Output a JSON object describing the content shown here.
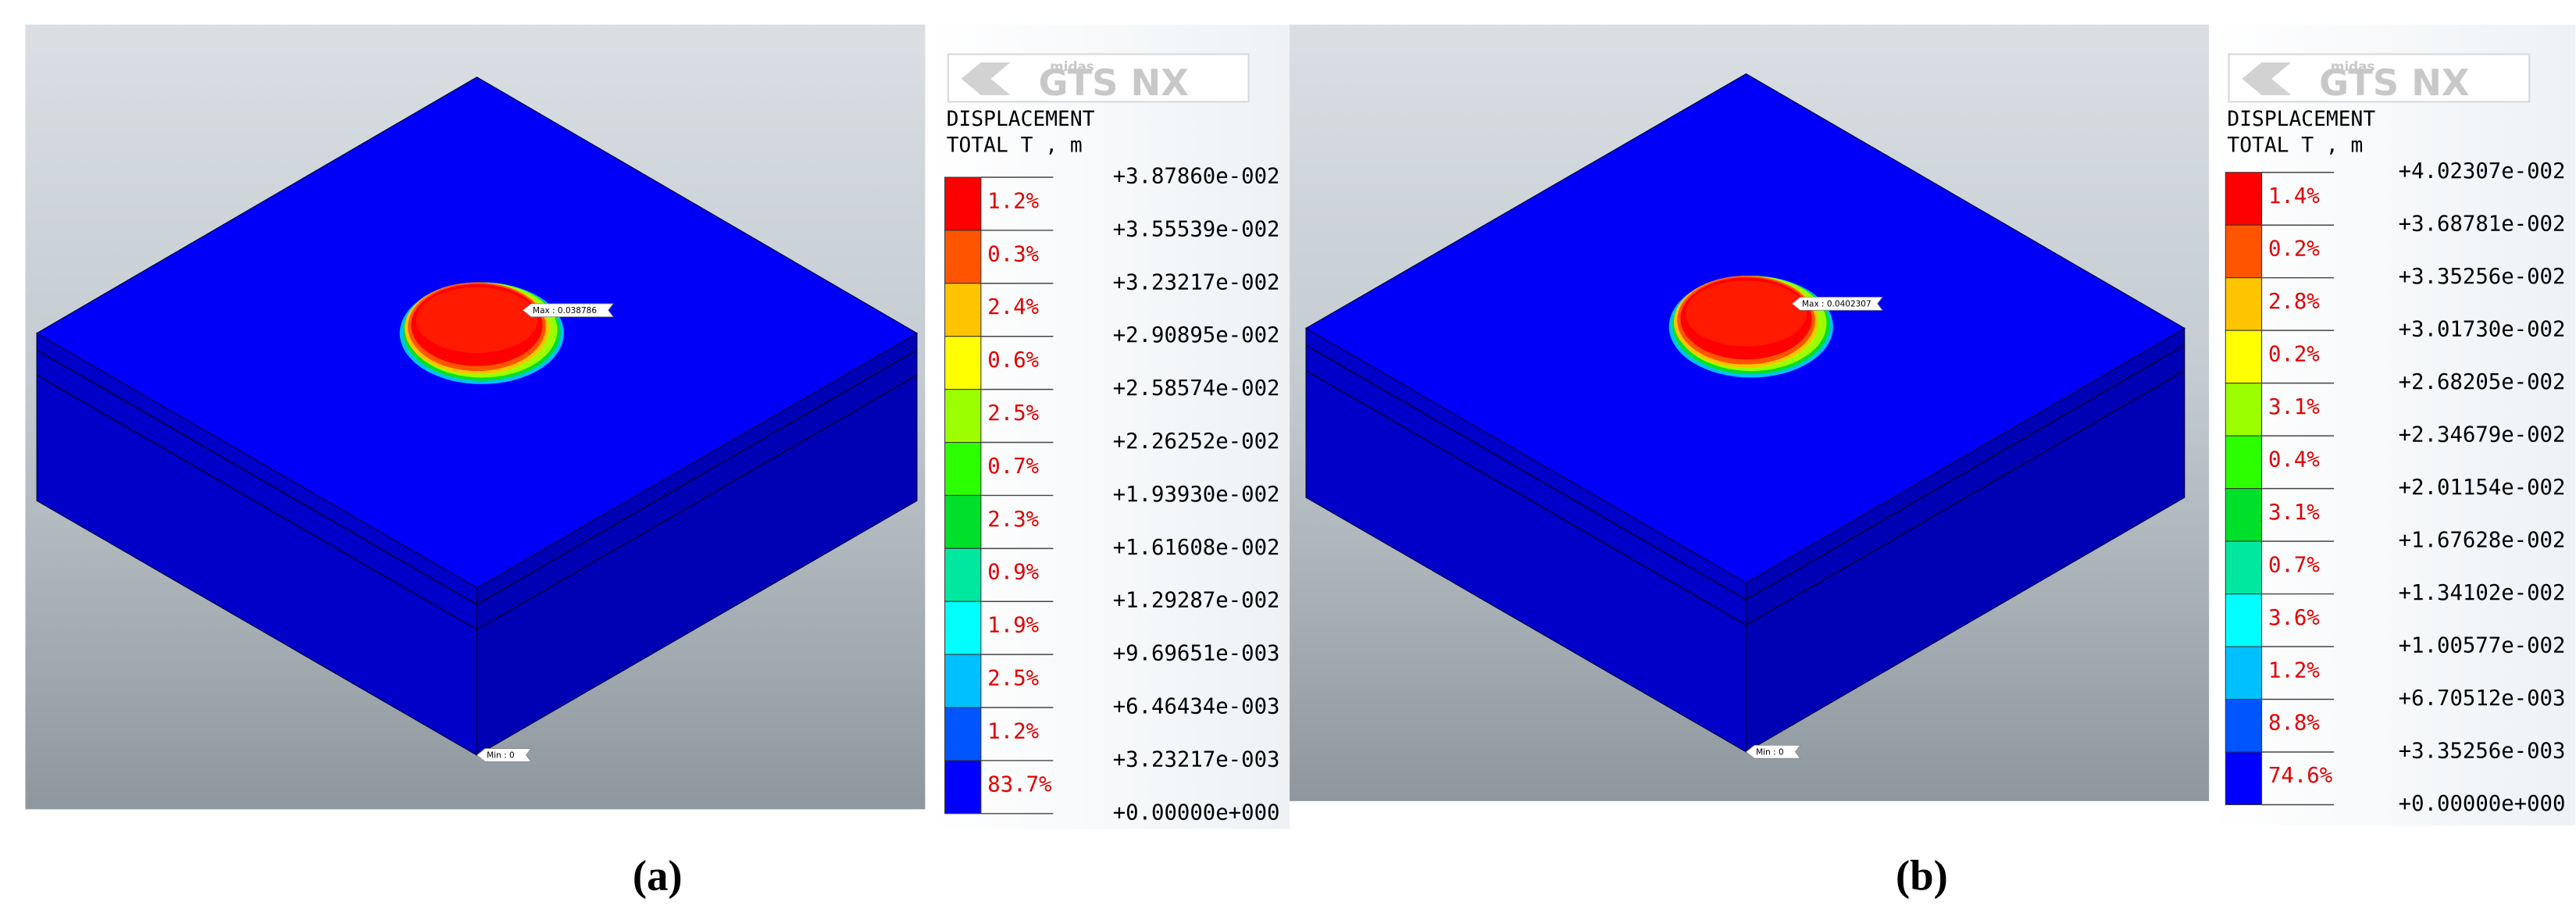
{
  "panels": [
    {
      "caption": "(a)",
      "max_tag": "Max : 0.038786",
      "min_tag": "Min : 0",
      "logo": {
        "maker": "midas",
        "product": "GTS NX"
      },
      "legend": {
        "title": "DISPLACEMENT",
        "subtitle": "TOTAL T , m",
        "levels": [
          "+3.87860e-002",
          "+3.55539e-002",
          "+3.23217e-002",
          "+2.90895e-002",
          "+2.58574e-002",
          "+2.26252e-002",
          "+1.93930e-002",
          "+1.61608e-002",
          "+1.29287e-002",
          "+9.69651e-003",
          "+6.46434e-003",
          "+3.23217e-003",
          "+0.00000e+000"
        ],
        "percents": [
          "1.2%",
          "0.3%",
          "2.4%",
          "0.6%",
          "2.5%",
          "0.7%",
          "2.3%",
          "0.9%",
          "1.9%",
          "2.5%",
          "1.2%",
          "83.7%"
        ],
        "colors": [
          "#fe0000",
          "#ff5500",
          "#ffc400",
          "#ffff00",
          "#9cff00",
          "#2cff00",
          "#00e02a",
          "#00e8a0",
          "#00ffff",
          "#00c0ff",
          "#0055ff",
          "#0000ff"
        ]
      }
    },
    {
      "caption": "(b)",
      "max_tag": "Max : 0.0402307",
      "min_tag": "Min : 0",
      "logo": {
        "maker": "midas",
        "product": "GTS NX"
      },
      "legend": {
        "title": "DISPLACEMENT",
        "subtitle": "TOTAL T , m",
        "levels": [
          "+4.02307e-002",
          "+3.68781e-002",
          "+3.35256e-002",
          "+3.01730e-002",
          "+2.68205e-002",
          "+2.34679e-002",
          "+2.01154e-002",
          "+1.67628e-002",
          "+1.34102e-002",
          "+1.00577e-002",
          "+6.70512e-003",
          "+3.35256e-003",
          "+0.00000e+000"
        ],
        "percents": [
          "1.4%",
          "0.2%",
          "2.8%",
          "0.2%",
          "3.1%",
          "0.4%",
          "3.1%",
          "0.7%",
          "3.6%",
          "1.2%",
          "8.8%",
          "74.6%"
        ],
        "colors": [
          "#fe0000",
          "#ff5500",
          "#ffc400",
          "#ffff00",
          "#9cff00",
          "#2cff00",
          "#00e02a",
          "#00e8a0",
          "#00ffff",
          "#00c0ff",
          "#0055ff",
          "#0000ff"
        ]
      }
    }
  ]
}
